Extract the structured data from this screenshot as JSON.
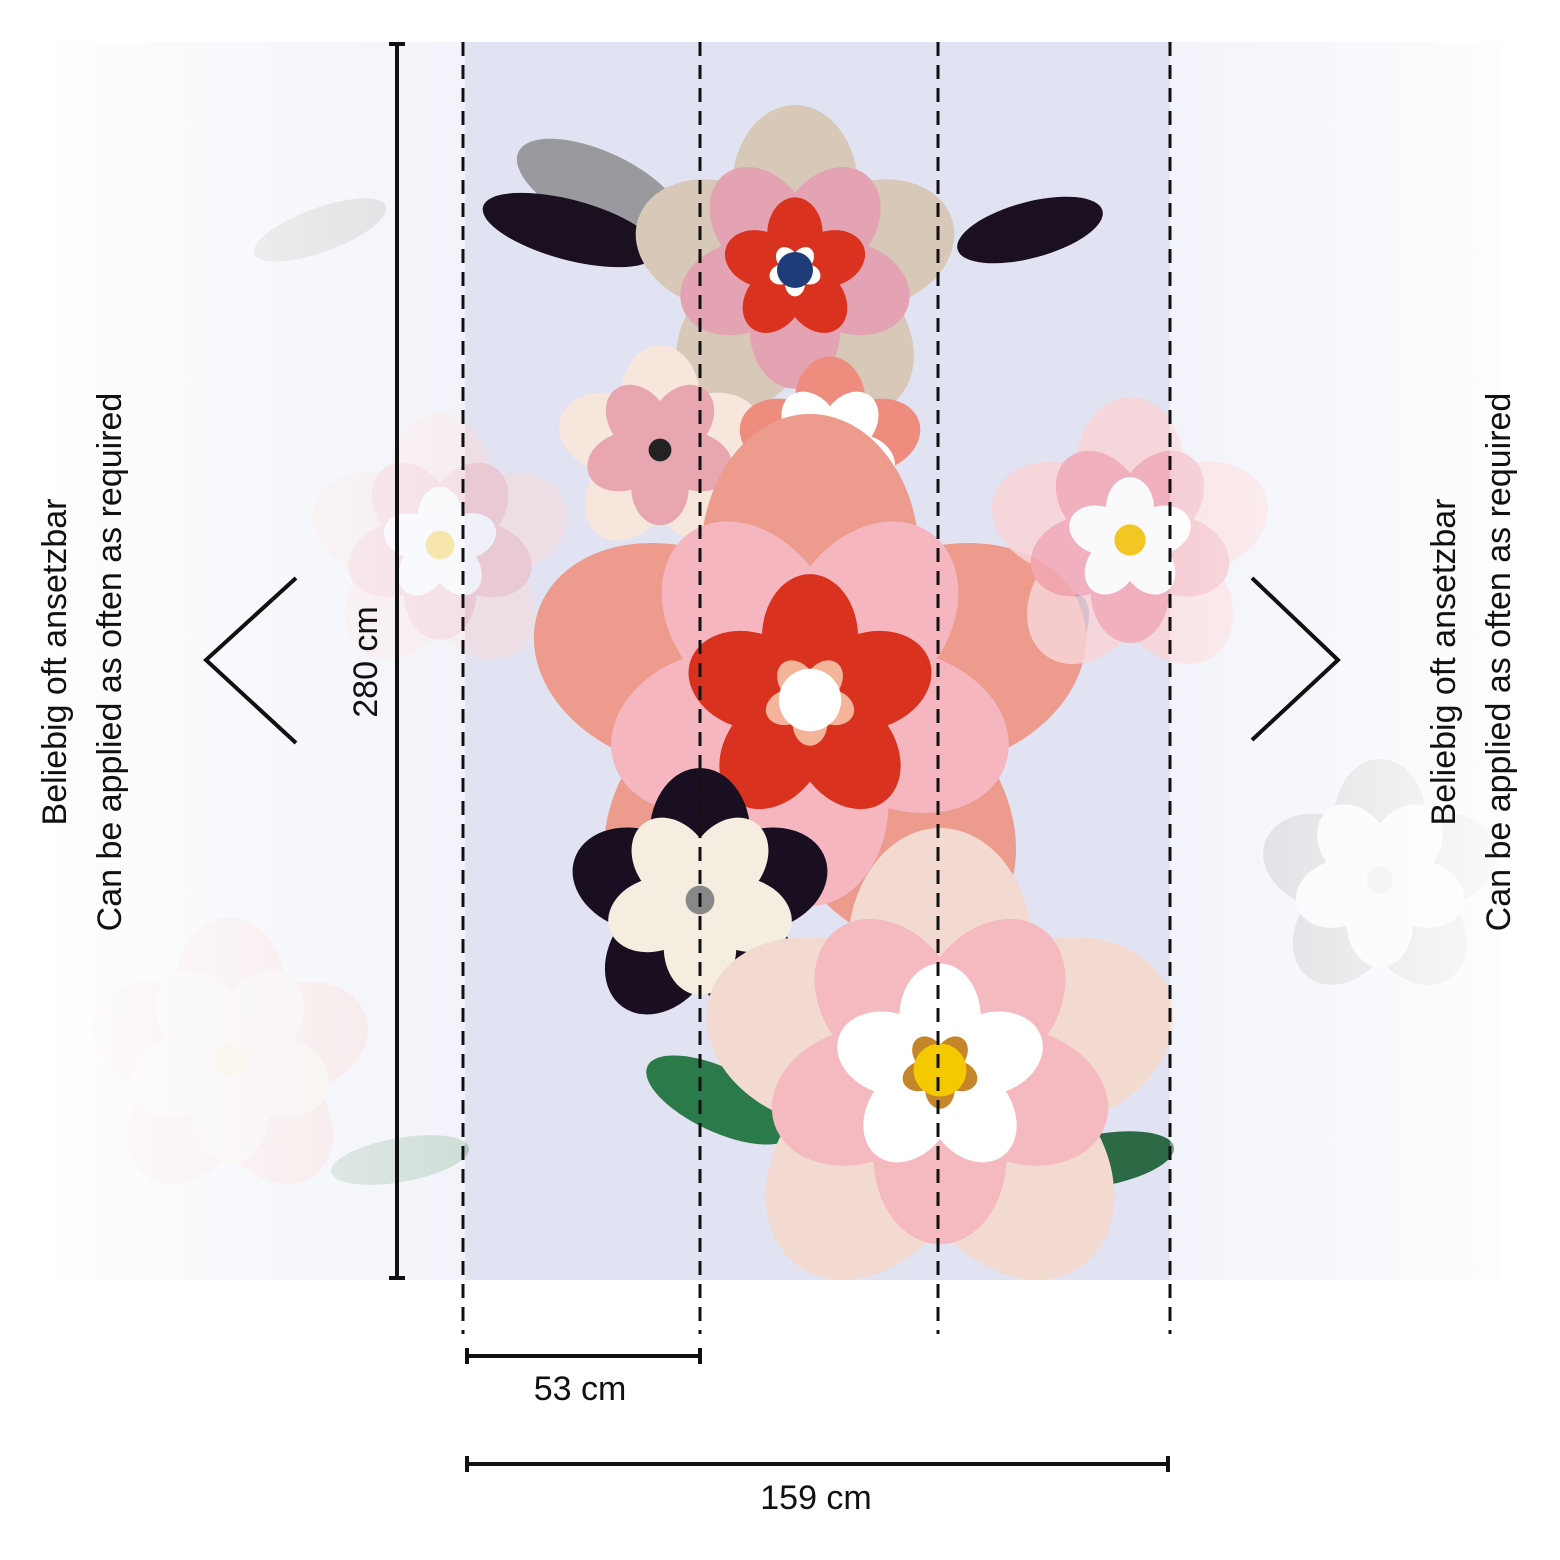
{
  "dimensions": {
    "height": "280 cm",
    "panel_width": "53 cm",
    "total_width": "159 cm"
  },
  "left_note": {
    "line1": "Beliebig oft ansetzbar",
    "line2": "Can be applied as often as required"
  },
  "right_note": {
    "line1": "Beliebig oft ansetzbar",
    "line2": "Can be applied as often as required"
  }
}
